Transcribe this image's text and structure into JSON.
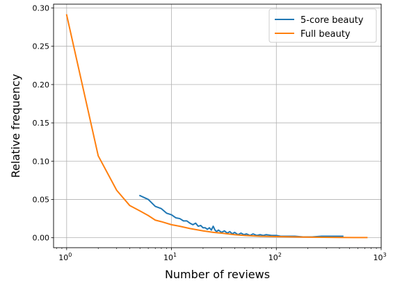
{
  "chart_data": {
    "type": "line",
    "xscale": "log",
    "xlabel": "Number of reviews",
    "ylabel": "Relative frequency",
    "xlim": [
      0.75,
      1000
    ],
    "ylim": [
      -0.013,
      0.305
    ],
    "x_ticks": [
      1,
      10,
      100,
      1000
    ],
    "x_tick_labels": [
      {
        "base": "10",
        "exp": "0"
      },
      {
        "base": "10",
        "exp": "1"
      },
      {
        "base": "10",
        "exp": "2"
      },
      {
        "base": "10",
        "exp": "3"
      }
    ],
    "y_ticks": [
      "0.00",
      "0.05",
      "0.10",
      "0.15",
      "0.20",
      "0.25",
      "0.30"
    ],
    "grid": true,
    "legend_position": "top-right",
    "series": [
      {
        "name": "5-core beauty",
        "color": "#1f77b4",
        "points": [
          [
            5,
            0.055
          ],
          [
            6,
            0.05
          ],
          [
            7,
            0.041
          ],
          [
            8,
            0.038
          ],
          [
            9,
            0.032
          ],
          [
            10,
            0.03
          ],
          [
            11,
            0.026
          ],
          [
            12,
            0.025
          ],
          [
            13,
            0.022
          ],
          [
            14,
            0.022
          ],
          [
            15,
            0.019
          ],
          [
            16,
            0.017
          ],
          [
            17,
            0.019
          ],
          [
            18,
            0.015
          ],
          [
            19,
            0.016
          ],
          [
            20,
            0.013
          ],
          [
            21,
            0.013
          ],
          [
            22,
            0.011
          ],
          [
            23,
            0.013
          ],
          [
            24,
            0.01
          ],
          [
            25,
            0.015
          ],
          [
            26,
            0.01
          ],
          [
            27,
            0.008
          ],
          [
            28,
            0.01
          ],
          [
            30,
            0.007
          ],
          [
            32,
            0.009
          ],
          [
            34,
            0.006
          ],
          [
            36,
            0.008
          ],
          [
            38,
            0.005
          ],
          [
            40,
            0.007
          ],
          [
            43,
            0.004
          ],
          [
            46,
            0.006
          ],
          [
            49,
            0.004
          ],
          [
            52,
            0.005
          ],
          [
            56,
            0.003
          ],
          [
            60,
            0.005
          ],
          [
            65,
            0.003
          ],
          [
            70,
            0.004
          ],
          [
            75,
            0.003
          ],
          [
            80,
            0.004
          ],
          [
            90,
            0.003
          ],
          [
            100,
            0.003
          ],
          [
            110,
            0.002
          ],
          [
            130,
            0.002
          ],
          [
            150,
            0.002
          ],
          [
            180,
            0.001
          ],
          [
            220,
            0.001
          ],
          [
            270,
            0.002
          ],
          [
            330,
            0.002
          ],
          [
            430,
            0.002
          ]
        ]
      },
      {
        "name": "Full beauty",
        "color": "#ff7f0e",
        "points": [
          [
            1,
            0.291
          ],
          [
            2,
            0.107
          ],
          [
            3,
            0.062
          ],
          [
            4,
            0.042
          ],
          [
            5,
            0.035
          ],
          [
            6,
            0.029
          ],
          [
            7,
            0.023
          ],
          [
            8,
            0.021
          ],
          [
            10,
            0.017
          ],
          [
            12,
            0.015
          ],
          [
            15,
            0.012
          ],
          [
            20,
            0.009
          ],
          [
            25,
            0.007
          ],
          [
            30,
            0.006
          ],
          [
            40,
            0.004
          ],
          [
            50,
            0.003
          ],
          [
            70,
            0.002
          ],
          [
            100,
            0.0015
          ],
          [
            200,
            0.0008
          ],
          [
            400,
            0.0004
          ],
          [
            730,
            0.0002
          ]
        ]
      }
    ]
  }
}
